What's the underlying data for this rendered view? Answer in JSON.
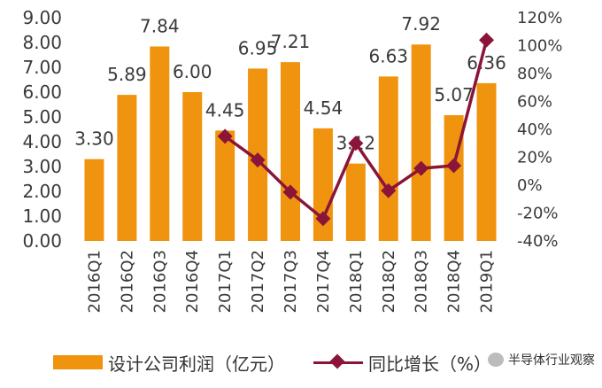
{
  "chart_data": {
    "type": "bar",
    "categories": [
      "2016Q1",
      "2016Q2",
      "2016Q3",
      "2016Q4",
      "2017Q1",
      "2017Q2",
      "2017Q3",
      "2017Q4",
      "2018Q1",
      "2018Q2",
      "2018Q3",
      "2018Q4",
      "2019Q1"
    ],
    "series": [
      {
        "name": "设计公司利润（亿元）",
        "type": "bar",
        "axis": "left",
        "color": "#F0930E",
        "values": [
          3.3,
          5.89,
          7.84,
          6.0,
          4.45,
          6.95,
          7.21,
          4.54,
          3.12,
          6.63,
          7.92,
          5.07,
          6.36
        ],
        "labels": [
          "3.30",
          "5.89",
          "7.84",
          "6.00",
          "4.45",
          "6.95",
          "7.21",
          "4.54",
          "3.12",
          "6.63",
          "7.92",
          "5.07",
          "6.36"
        ]
      },
      {
        "name": "同比增长（%）",
        "type": "line",
        "axis": "right",
        "color": "#8B1538",
        "x": [
          "2017Q1",
          "2017Q2",
          "2017Q3",
          "2017Q4",
          "2018Q1",
          "2018Q2",
          "2018Q3",
          "2018Q4",
          "2019Q1"
        ],
        "values": [
          35,
          18,
          -5,
          -24,
          30,
          -4,
          12,
          14,
          104
        ]
      }
    ],
    "y_left": {
      "lim": [
        0,
        9
      ],
      "ticks": [
        "0.00",
        "1.00",
        "2.00",
        "3.00",
        "4.00",
        "5.00",
        "6.00",
        "7.00",
        "8.00",
        "9.00"
      ]
    },
    "y_right": {
      "lim": [
        -40,
        120
      ],
      "ticks": [
        "-40%",
        "-20%",
        "0%",
        "20%",
        "40%",
        "60%",
        "80%",
        "100%",
        "120%"
      ]
    },
    "grid": false,
    "legend_position": "bottom"
  },
  "watermark": {
    "text": "半导体行业观察",
    "icon": "wechat-icon"
  }
}
